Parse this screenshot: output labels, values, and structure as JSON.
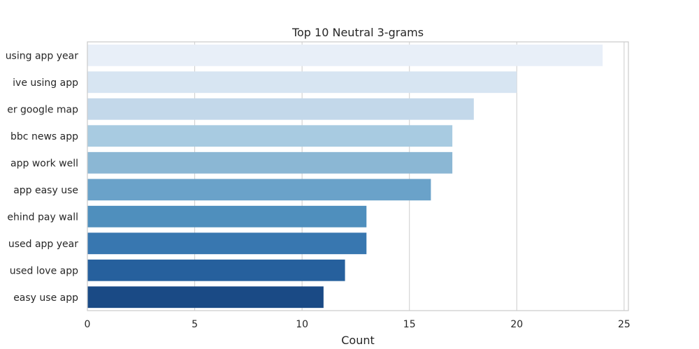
{
  "chart_data": {
    "type": "bar",
    "orientation": "horizontal",
    "title": "Top 10 Neutral 3-grams",
    "xlabel": "Count",
    "ylabel": "",
    "xlim": [
      0,
      25.2
    ],
    "xticks": [
      0,
      5,
      10,
      15,
      20,
      25
    ],
    "grid": true,
    "categories": [
      "using app year",
      "ive using app",
      "er google map",
      "bbc news app",
      "app work well",
      "app easy use",
      "ehind pay wall",
      "used app year",
      "used love app",
      "easy use app"
    ],
    "values": [
      24,
      20,
      18,
      17,
      17,
      16,
      13,
      13,
      12,
      11
    ],
    "colors": [
      "#e8eff8",
      "#d7e5f2",
      "#c3d8ea",
      "#a8cbe1",
      "#8bb7d4",
      "#6aa2c9",
      "#4f8fbd",
      "#3877b0",
      "#26609d",
      "#1a4a85"
    ]
  }
}
